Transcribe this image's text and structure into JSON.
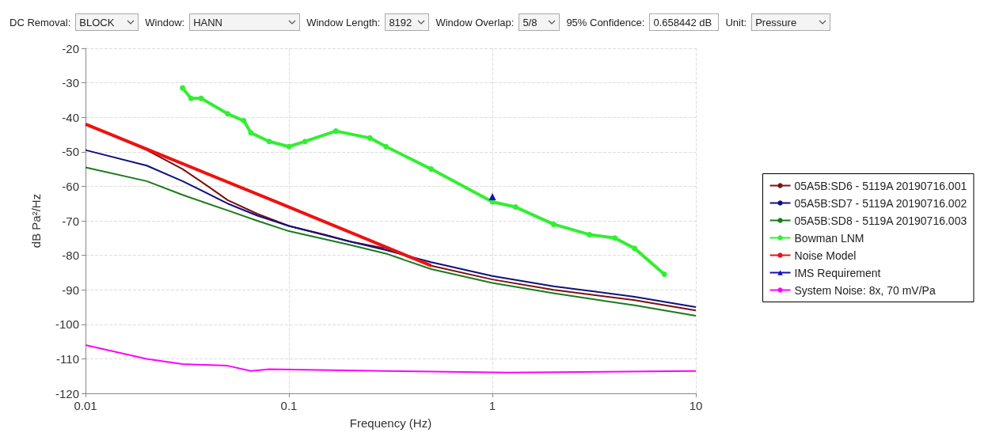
{
  "chart_data": {
    "type": "line",
    "xlabel": "Frequency (Hz)",
    "ylabel": "dB Pa²/Hz",
    "annotations": [
      "DC Removal:",
      "BLOCK",
      "Window:",
      "HANN",
      "Window Length:",
      "8192",
      "Window Overlap:",
      "5/8",
      "95% Confidence:",
      "0.658442 dB",
      "Unit:",
      "Pressure"
    ],
    "log": "x",
    "xlim": [
      0.01,
      10
    ],
    "xticks": [
      0.01,
      0.1,
      1,
      10
    ],
    "ylim": [
      -120,
      -20
    ],
    "yticks": [
      -120,
      -110,
      -100,
      -90,
      -80,
      -70,
      -60,
      -50,
      -40,
      -30,
      -20
    ],
    "grid": true,
    "legend": "right",
    "line_style": "solid",
    "series": [
      {
        "name": "05A5B:SD6 - 5119A 20190716.001",
        "color": "#7b1010",
        "marker": "none",
        "x": [
          0.01,
          0.02,
          0.03,
          0.04,
          0.05,
          0.07,
          0.1,
          0.15,
          0.2,
          0.3,
          0.5,
          1,
          2,
          5,
          10
        ],
        "values": [
          -42,
          -49.5,
          -55,
          -60,
          -64,
          -68,
          -71.5,
          -74,
          -76,
          -78,
          -83,
          -87,
          -90,
          -93,
          -96
        ]
      },
      {
        "name": "05A5B:SD7 - 5119A 20190716.002",
        "color": "#101080",
        "marker": "none",
        "x": [
          0.01,
          0.02,
          0.03,
          0.05,
          0.07,
          0.1,
          0.2,
          0.3,
          0.5,
          1,
          2,
          5,
          10
        ],
        "values": [
          -49.5,
          -54,
          -58.5,
          -65,
          -68.5,
          -71.5,
          -76,
          -78.5,
          -82,
          -86,
          -89,
          -92,
          -95
        ]
      },
      {
        "name": "05A5B:SD8 - 5119A 20190716.003",
        "color": "#1a7a1a",
        "marker": "none",
        "x": [
          0.01,
          0.02,
          0.03,
          0.05,
          0.07,
          0.1,
          0.2,
          0.3,
          0.5,
          1,
          2,
          5,
          10
        ],
        "values": [
          -54.5,
          -58.5,
          -62.5,
          -67,
          -70,
          -73,
          -77,
          -79.5,
          -84,
          -88,
          -91,
          -94.5,
          -97.5
        ]
      },
      {
        "name": "Bowman LNM",
        "color": "#33ee33",
        "marker": "circle",
        "x": [
          0.03,
          0.033,
          0.037,
          0.05,
          0.06,
          0.065,
          0.08,
          0.1,
          0.12,
          0.17,
          0.25,
          0.3,
          0.5,
          1,
          1.3,
          2,
          3,
          4,
          5,
          7
        ],
        "values": [
          -31.5,
          -34.5,
          -34.5,
          -39,
          -41,
          -44.5,
          -47,
          -48.5,
          -47,
          -44,
          -46,
          -48.5,
          -55,
          -64.5,
          -66,
          -71,
          -74,
          -75,
          -78,
          -85.5
        ]
      },
      {
        "name": "Noise Model",
        "color": "#ee1111",
        "marker": "none",
        "x": [
          0.01,
          0.1,
          0.5
        ],
        "values": [
          -42,
          -66,
          -83
        ]
      },
      {
        "name": "IMS Requirement",
        "color": "#1010c0",
        "marker": "triangle",
        "x": [
          1
        ],
        "values": [
          -63
        ]
      },
      {
        "name": "System Noise: 8x, 70 mV/Pa",
        "color": "#ff00ff",
        "marker": "none",
        "x": [
          0.01,
          0.02,
          0.03,
          0.05,
          0.065,
          0.08,
          0.3,
          1.2,
          10
        ],
        "values": [
          -106,
          -110,
          -111.5,
          -112,
          -113.5,
          -113,
          -113.5,
          -114,
          -113.5
        ]
      }
    ]
  }
}
